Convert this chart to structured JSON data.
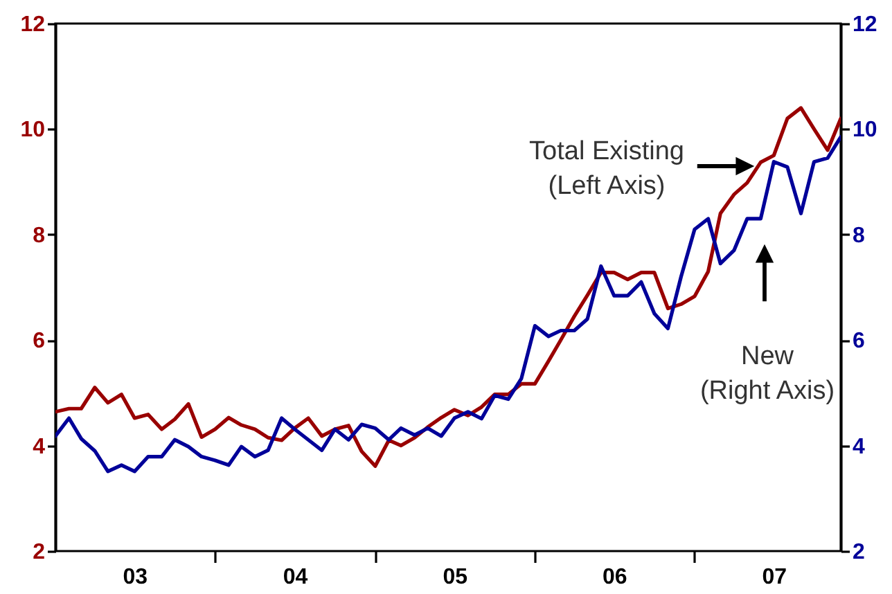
{
  "chart_data": {
    "type": "line",
    "x": [
      "2003-01",
      "2003-02",
      "2003-03",
      "2003-04",
      "2003-05",
      "2003-06",
      "2003-07",
      "2003-08",
      "2003-09",
      "2003-10",
      "2003-11",
      "2003-12",
      "2004-01",
      "2004-02",
      "2004-03",
      "2004-04",
      "2004-05",
      "2004-06",
      "2004-07",
      "2004-08",
      "2004-09",
      "2004-10",
      "2004-11",
      "2004-12",
      "2005-01",
      "2005-02",
      "2005-03",
      "2005-04",
      "2005-05",
      "2005-06",
      "2005-07",
      "2005-08",
      "2005-09",
      "2005-10",
      "2005-11",
      "2005-12",
      "2006-01",
      "2006-02",
      "2006-03",
      "2006-04",
      "2006-05",
      "2006-06",
      "2006-07",
      "2006-08",
      "2006-09",
      "2006-10",
      "2006-11",
      "2006-12",
      "2007-01",
      "2007-02",
      "2007-03",
      "2007-04",
      "2007-05",
      "2007-06",
      "2007-07",
      "2007-08",
      "2007-09",
      "2007-10",
      "2007-11",
      "2007-12"
    ],
    "series": [
      {
        "color": "#990000",
        "axis": "y",
        "values": [
          4.64,
          4.7,
          4.7,
          5.1,
          4.81,
          4.97,
          4.52,
          4.59,
          4.31,
          4.5,
          4.79,
          4.16,
          4.31,
          4.53,
          4.39,
          4.31,
          4.15,
          4.1,
          4.33,
          4.52,
          4.18,
          4.31,
          4.38,
          3.89,
          3.61,
          4.1,
          4.0,
          4.15,
          4.35,
          4.53,
          4.68,
          4.57,
          4.73,
          4.97,
          4.97,
          5.17,
          5.17,
          5.6,
          6.0,
          6.45,
          6.85,
          7.28,
          7.28,
          7.15,
          7.28,
          7.28,
          6.6,
          6.68,
          6.83,
          7.3,
          8.4,
          8.76,
          8.98,
          9.37,
          9.5,
          10.2,
          10.4,
          10.0,
          9.6,
          10.2
        ]
      },
      {
        "color": "#000099",
        "axis": "y2",
        "values": [
          4.18,
          4.52,
          4.13,
          3.9,
          3.51,
          3.63,
          3.51,
          3.79,
          3.79,
          4.11,
          3.98,
          3.79,
          3.72,
          3.63,
          3.98,
          3.79,
          3.91,
          4.52,
          4.31,
          4.11,
          3.91,
          4.31,
          4.11,
          4.4,
          4.33,
          4.11,
          4.33,
          4.2,
          4.33,
          4.18,
          4.52,
          4.64,
          4.51,
          4.95,
          4.88,
          5.27,
          6.27,
          6.07,
          6.18,
          6.18,
          6.4,
          7.4,
          6.84,
          6.84,
          7.1,
          6.5,
          6.22,
          7.2,
          8.1,
          8.3,
          7.45,
          7.7,
          8.3,
          8.3,
          9.38,
          9.28,
          8.4,
          9.38,
          9.45,
          9.85
        ]
      }
    ],
    "xlim": [
      "2003-01",
      "2007-12"
    ],
    "xticks": [
      {
        "value": "2003-07",
        "label": "03"
      },
      {
        "value": "2004-01",
        "label": null
      },
      {
        "value": "2004-07",
        "label": "04"
      },
      {
        "value": "2005-01",
        "label": null
      },
      {
        "value": "2005-07",
        "label": "05"
      },
      {
        "value": "2006-01",
        "label": null
      },
      {
        "value": "2006-07",
        "label": "06"
      },
      {
        "value": "2007-01",
        "label": null
      },
      {
        "value": "2007-07",
        "label": "07"
      }
    ],
    "ylim": [
      2,
      12
    ],
    "yticks": [
      2,
      4,
      6,
      8,
      10,
      12
    ],
    "y2lim": [
      2,
      12
    ],
    "y2ticks": [
      2,
      4,
      6,
      8,
      10,
      12
    ],
    "annotations": [
      "Total Existing\n(Left Axis)",
      "New\n(Right Axis)"
    ],
    "grid": false
  }
}
